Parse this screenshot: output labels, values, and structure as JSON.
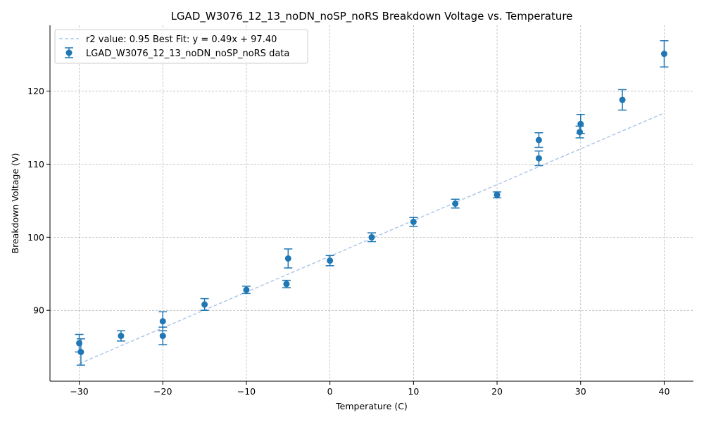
{
  "chart_data": {
    "type": "scatter",
    "title": "LGAD_W3076_12_13_noDN_noSP_noRS Breakdown Voltage vs. Temperature",
    "xlabel": "Temperature (C)",
    "ylabel": "Breakdown Voltage (V)",
    "xlim": [
      -33.5,
      43.5
    ],
    "ylim": [
      80.3,
      129.0
    ],
    "xticks": [
      -30,
      -20,
      -10,
      0,
      10,
      20,
      30,
      40
    ],
    "xtick_labels": [
      "−30",
      "−20",
      "−10",
      "0",
      "10",
      "20",
      "30",
      "40"
    ],
    "yticks": [
      90,
      100,
      110,
      120
    ],
    "ytick_labels": [
      "90",
      "100",
      "110",
      "120"
    ],
    "grid": true,
    "legend_position": "top-left",
    "series": [
      {
        "name": "LGAD_W3076_12_13_noDN_noSP_noRS data",
        "kind": "errorbar",
        "color": "#1f77b4",
        "points": [
          {
            "x": -30.0,
            "y": 85.5,
            "err": 1.2
          },
          {
            "x": -29.8,
            "y": 84.3,
            "err": 1.8
          },
          {
            "x": -25.0,
            "y": 86.5,
            "err": 0.7
          },
          {
            "x": -20.0,
            "y": 88.5,
            "err": 1.3
          },
          {
            "x": -20.0,
            "y": 86.5,
            "err": 1.2
          },
          {
            "x": -15.0,
            "y": 90.8,
            "err": 0.8
          },
          {
            "x": -10.0,
            "y": 92.8,
            "err": 0.5
          },
          {
            "x": -5.0,
            "y": 97.1,
            "err": 1.3
          },
          {
            "x": -5.2,
            "y": 93.6,
            "err": 0.5
          },
          {
            "x": 0.0,
            "y": 96.8,
            "err": 0.7
          },
          {
            "x": 5.0,
            "y": 100.0,
            "err": 0.6
          },
          {
            "x": 10.0,
            "y": 102.1,
            "err": 0.6
          },
          {
            "x": 15.0,
            "y": 104.6,
            "err": 0.6
          },
          {
            "x": 20.0,
            "y": 105.8,
            "err": 0.4
          },
          {
            "x": 25.0,
            "y": 113.3,
            "err": 1.0
          },
          {
            "x": 25.0,
            "y": 110.8,
            "err": 1.0
          },
          {
            "x": 30.0,
            "y": 115.5,
            "err": 1.3
          },
          {
            "x": 29.9,
            "y": 114.4,
            "err": 0.8
          },
          {
            "x": 35.0,
            "y": 118.8,
            "err": 1.4
          },
          {
            "x": 40.0,
            "y": 125.1,
            "err": 1.8
          }
        ]
      },
      {
        "name": "r2 value: 0.95 Best Fit: y = 0.49x + 97.40",
        "kind": "line",
        "color": "#aec7e8",
        "dashed": true,
        "slope": 0.49,
        "intercept": 97.4,
        "x_range": [
          -30,
          40
        ]
      }
    ]
  }
}
